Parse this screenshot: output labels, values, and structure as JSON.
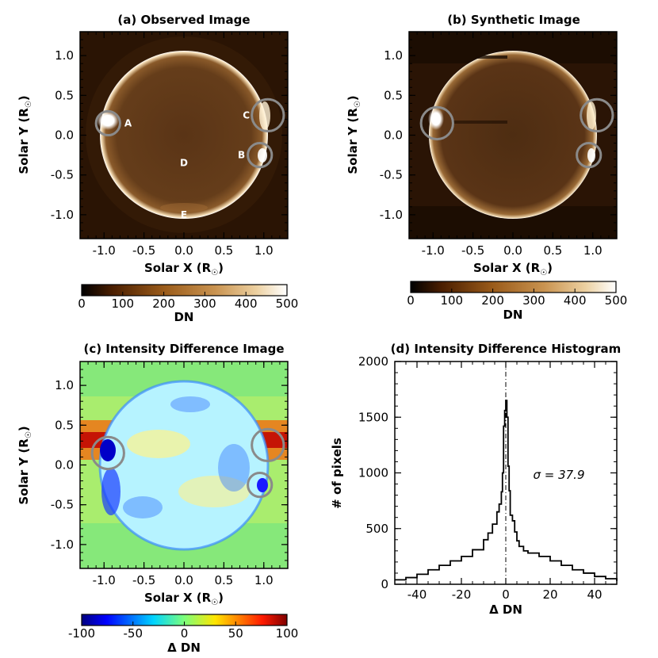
{
  "chart_data": [
    {
      "type": "heatmap",
      "title": "(a) Observed Image",
      "xlabel": "Solar X (R",
      "ylabel": "Solar Y (R",
      "xlim": [
        -1.3,
        1.3
      ],
      "ylim": [
        -1.3,
        1.3
      ],
      "xticks": [
        -1.0,
        -0.5,
        0.0,
        0.5,
        1.0
      ],
      "xtick_labels": [
        "-1.0",
        "-0.5",
        "0.0",
        "0.5",
        "1.0"
      ],
      "yticks": [
        1.0,
        0.5,
        0.0,
        -0.5,
        -1.0
      ],
      "ytick_labels": [
        "1.0",
        "0.5",
        "0.0",
        "-0.5",
        "-1.0"
      ],
      "colorbar": {
        "label": "DN",
        "range": [
          0,
          500
        ],
        "ticks": [
          "0",
          "100",
          "200",
          "300",
          "400",
          "500"
        ]
      },
      "circles": [
        {
          "x": -0.95,
          "y": 0.15,
          "r": 0.15
        },
        {
          "x": 1.05,
          "y": 0.25,
          "r": 0.2
        },
        {
          "x": 0.95,
          "y": -0.25,
          "r": 0.15
        }
      ],
      "annotations": [
        {
          "text": "A",
          "x": -0.7,
          "y": 0.15
        },
        {
          "text": "C",
          "x": 0.78,
          "y": 0.25
        },
        {
          "text": "B",
          "x": 0.72,
          "y": -0.25
        },
        {
          "text": "D",
          "x": 0.0,
          "y": -0.35
        },
        {
          "text": "E",
          "x": 0.0,
          "y": -1.0
        }
      ]
    },
    {
      "type": "heatmap",
      "title": "(b) Synthetic Image",
      "xlabel": "Solar X (R",
      "ylabel": "Solar Y (R",
      "xlim": [
        -1.3,
        1.3
      ],
      "ylim": [
        -1.3,
        1.3
      ],
      "xticks": [
        -1.0,
        -0.5,
        0.0,
        0.5,
        1.0
      ],
      "xtick_labels": [
        "-1.0",
        "-0.5",
        "0.0",
        "0.5",
        "1.0"
      ],
      "yticks": [
        1.0,
        0.5,
        0.0,
        -0.5,
        -1.0
      ],
      "ytick_labels": [
        "1.0",
        "0.5",
        "0.0",
        "-0.5",
        "-1.0"
      ],
      "colorbar": {
        "label": "DN",
        "range": [
          0,
          500
        ],
        "ticks": [
          "0",
          "100",
          "200",
          "300",
          "400",
          "500"
        ]
      },
      "circles": [
        {
          "x": -0.95,
          "y": 0.15,
          "r": 0.2
        },
        {
          "x": 1.05,
          "y": 0.25,
          "r": 0.2
        },
        {
          "x": 0.95,
          "y": -0.25,
          "r": 0.15
        }
      ]
    },
    {
      "type": "heatmap",
      "title": "(c) Intensity Difference Image",
      "xlabel": "Solar X (R",
      "ylabel": "Solar Y (R",
      "xlim": [
        -1.3,
        1.3
      ],
      "ylim": [
        -1.3,
        1.3
      ],
      "xticks": [
        -1.0,
        -0.5,
        0.0,
        0.5,
        1.0
      ],
      "xtick_labels": [
        "-1.0",
        "-0.5",
        "0.0",
        "0.5",
        "1.0"
      ],
      "yticks": [
        1.0,
        0.5,
        0.0,
        -0.5,
        -1.0
      ],
      "ytick_labels": [
        "1.0",
        "0.5",
        "0.0",
        "-0.5",
        "-1.0"
      ],
      "colorbar": {
        "label": "Δ DN",
        "range": [
          -100,
          100
        ],
        "ticks": [
          "-100",
          "-50",
          "0",
          "50",
          "100"
        ]
      },
      "circles": [
        {
          "x": -0.95,
          "y": 0.15,
          "r": 0.2
        },
        {
          "x": 1.05,
          "y": 0.25,
          "r": 0.2
        },
        {
          "x": 0.95,
          "y": -0.25,
          "r": 0.15
        }
      ]
    },
    {
      "type": "line",
      "title": "(d) Intensity Difference Histogram",
      "xlabel": "Δ DN",
      "ylabel": "# of pixels",
      "xlim": [
        -50,
        50
      ],
      "ylim": [
        0,
        2000
      ],
      "xticks": [
        -40,
        -20,
        0,
        20,
        40
      ],
      "xtick_labels": [
        "-40",
        "-20",
        "0",
        "20",
        "40"
      ],
      "yticks": [
        0,
        500,
        1000,
        1500,
        2000
      ],
      "ytick_labels": [
        "0",
        "500",
        "1000",
        "1500",
        "2000"
      ],
      "annotation": "σ = 37.9",
      "x": [
        -50,
        -45,
        -40,
        -35,
        -30,
        -25,
        -20,
        -15,
        -10,
        -8,
        -6,
        -4,
        -3,
        -2,
        -1.5,
        -1,
        -0.5,
        0,
        0.5,
        1,
        1.5,
        2,
        3,
        4,
        5,
        6,
        8,
        10,
        15,
        20,
        25,
        30,
        35,
        40,
        45,
        50
      ],
      "y": [
        40,
        60,
        90,
        130,
        170,
        210,
        250,
        310,
        400,
        460,
        540,
        650,
        720,
        830,
        1000,
        1420,
        1560,
        1650,
        1500,
        1060,
        840,
        620,
        570,
        470,
        390,
        340,
        300,
        280,
        250,
        210,
        170,
        130,
        100,
        70,
        50,
        30
      ],
      "zero_line": 0
    }
  ]
}
